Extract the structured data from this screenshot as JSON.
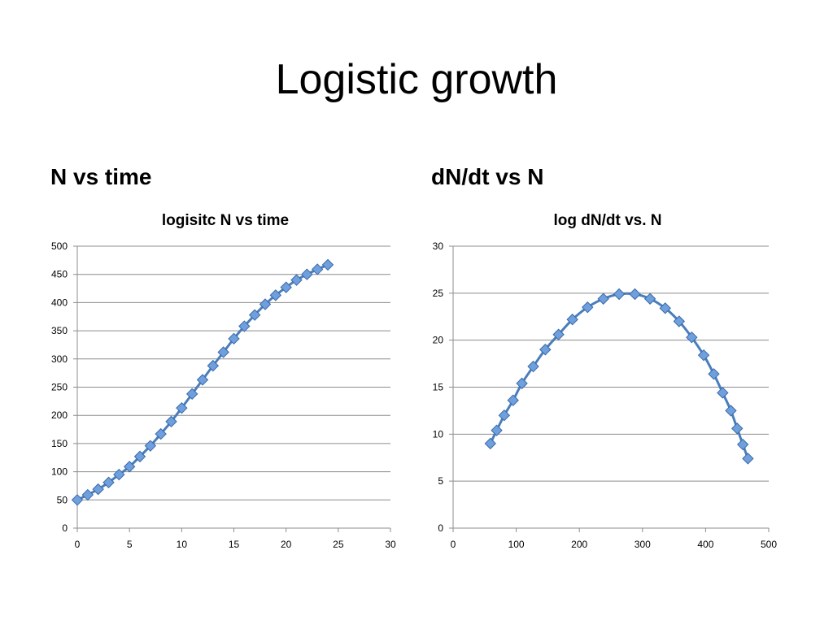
{
  "slide": {
    "title": "Logistic growth",
    "left_heading": "N vs time",
    "right_heading": "dN/dt vs N"
  },
  "colors": {
    "series_line": "#4a7ebb",
    "marker_fill": "#6f9fdc",
    "marker_stroke": "#3a6aa8",
    "gridline": "#8c8c8c"
  },
  "chart_data": [
    {
      "type": "scatter",
      "title": "logisitc N vs time",
      "xlabel": "",
      "ylabel": "",
      "xlim": [
        0,
        30
      ],
      "ylim": [
        0,
        500
      ],
      "xticks": [
        0,
        5,
        10,
        15,
        20,
        25,
        30
      ],
      "yticks": [
        0,
        50,
        100,
        150,
        200,
        250,
        300,
        350,
        400,
        450,
        500
      ],
      "grid": "horizontal",
      "legend": "none",
      "marker": "diamond",
      "series": [
        {
          "x": [
            0,
            1,
            2,
            3,
            4,
            5,
            6,
            7,
            8,
            9,
            10,
            11,
            12,
            13,
            14,
            15,
            16,
            17,
            18,
            19,
            20,
            21,
            22,
            23,
            24
          ],
          "y": [
            50,
            59,
            69,
            81,
            95,
            109,
            127,
            146,
            167,
            189,
            213,
            238,
            263,
            288,
            312,
            336,
            358,
            378,
            397,
            413,
            427,
            440,
            450,
            459,
            467
          ]
        }
      ]
    },
    {
      "type": "scatter",
      "title": "log dN/dt vs. N",
      "xlabel": "",
      "ylabel": "",
      "xlim": [
        0,
        500
      ],
      "ylim": [
        0,
        30
      ],
      "xticks": [
        0,
        100,
        200,
        300,
        400,
        500
      ],
      "yticks": [
        0,
        5,
        10,
        15,
        20,
        25,
        30
      ],
      "grid": "horizontal",
      "legend": "none",
      "marker": "diamond",
      "series": [
        {
          "x": [
            59,
            69,
            81,
            95,
            109,
            127,
            146,
            167,
            189,
            213,
            238,
            263,
            288,
            312,
            336,
            358,
            378,
            397,
            413,
            427,
            440,
            450,
            459,
            467
          ],
          "y": [
            9.0,
            10.4,
            12.0,
            13.6,
            15.4,
            17.2,
            19.0,
            20.6,
            22.2,
            23.5,
            24.4,
            24.9,
            24.9,
            24.4,
            23.4,
            22.0,
            20.3,
            18.4,
            16.4,
            14.4,
            12.5,
            10.6,
            8.9,
            7.4
          ]
        }
      ]
    }
  ]
}
